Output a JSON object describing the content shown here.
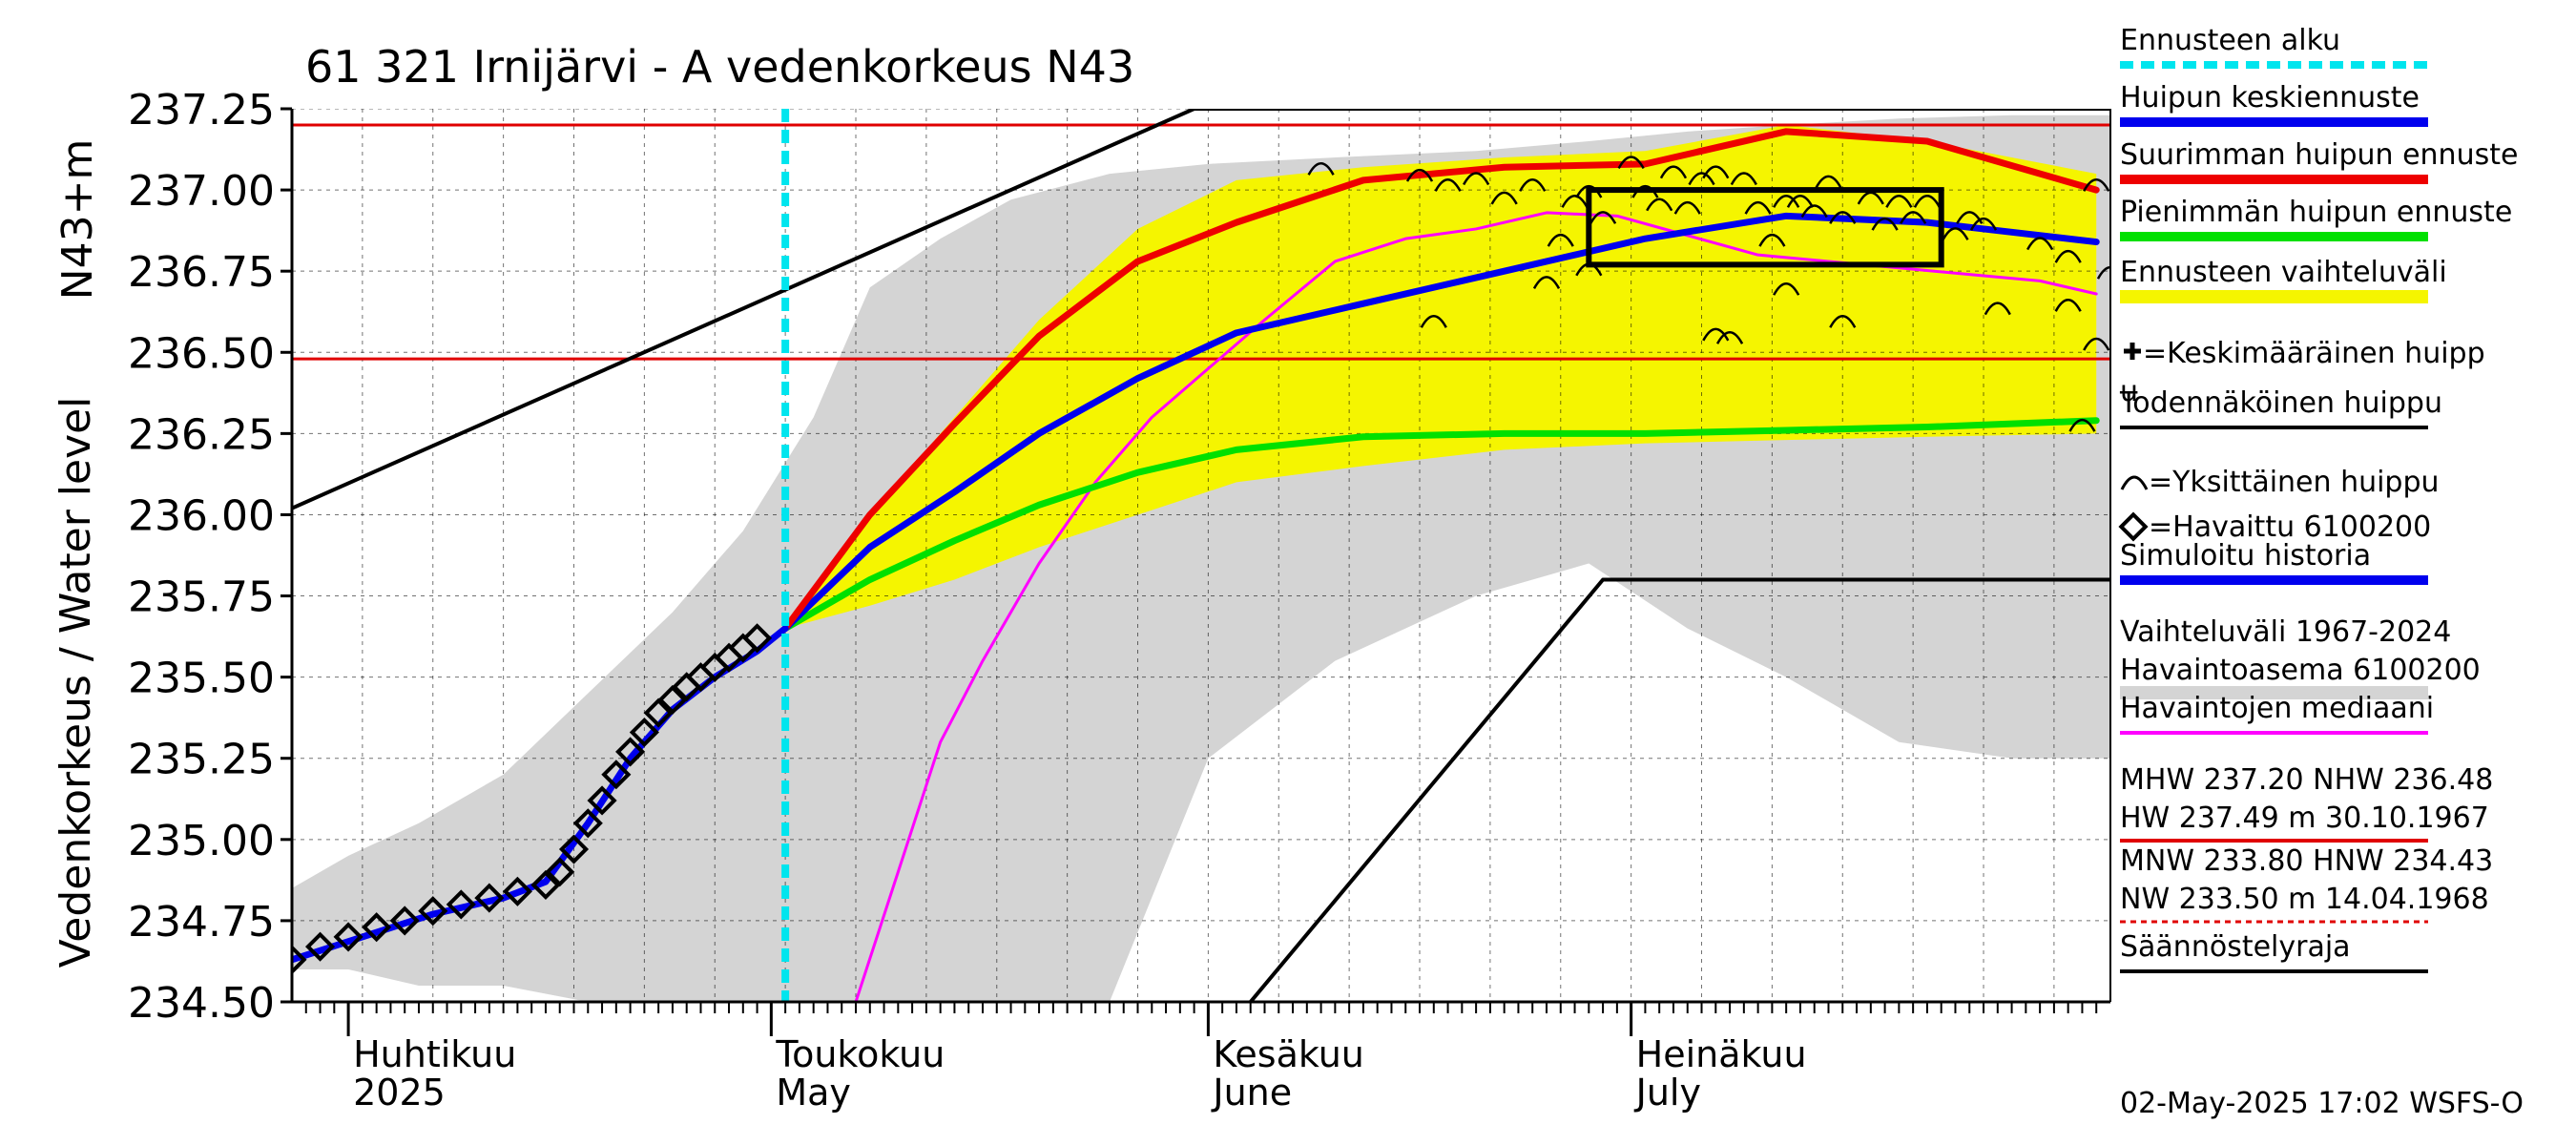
{
  "chart_data": {
    "type": "line",
    "title": "61 321 Irnijärvi - A vedenkorkeus N43",
    "ylabel_outer": "Vedenkorkeus / Water level",
    "ylabel_inner": "N43+m",
    "ylim": [
      234.5,
      237.25
    ],
    "yticks": [
      {
        "value": 234.5,
        "label": "234.50"
      },
      {
        "value": 234.75,
        "label": "234.75"
      },
      {
        "value": 235.0,
        "label": "235.00"
      },
      {
        "value": 235.25,
        "label": "235.25"
      },
      {
        "value": 235.5,
        "label": "235.50"
      },
      {
        "value": 235.75,
        "label": "235.75"
      },
      {
        "value": 236.0,
        "label": "236.00"
      },
      {
        "value": 236.25,
        "label": "236.25"
      },
      {
        "value": 236.5,
        "label": "236.50"
      },
      {
        "value": 236.75,
        "label": "236.75"
      },
      {
        "value": 237.0,
        "label": "237.00"
      },
      {
        "value": 237.25,
        "label": "237.25"
      }
    ],
    "xlim": [
      "2025-03-28",
      "2025-08-04"
    ],
    "month_ticks": [
      {
        "date": "2025-04-01",
        "label1": "Huhtikuu",
        "label2": "2025"
      },
      {
        "date": "2025-05-01",
        "label1": "Toukokuu",
        "label2": "May"
      },
      {
        "date": "2025-06-01",
        "label1": "Kesäkuu",
        "label2": "June"
      },
      {
        "date": "2025-07-01",
        "label1": "Heinäkuu",
        "label2": "July"
      }
    ],
    "forecast_start": "2025-05-02",
    "hlines": [
      {
        "name": "MHW",
        "value": 237.2,
        "color": "#e00000"
      },
      {
        "name": "NHW",
        "value": 236.48,
        "color": "#e00000"
      }
    ],
    "series": [
      {
        "name": "Vaihteluväli 1967-2024 Havaintoasema 6100200",
        "kind": "band",
        "color": "#d4d4d4",
        "x": [
          "2025-03-28",
          "2025-04-01",
          "2025-04-06",
          "2025-04-12",
          "2025-04-18",
          "2025-04-24",
          "2025-04-29",
          "2025-05-04",
          "2025-05-08",
          "2025-05-13",
          "2025-05-18",
          "2025-05-25",
          "2025-06-01",
          "2025-06-10",
          "2025-06-20",
          "2025-06-28",
          "2025-07-05",
          "2025-07-12",
          "2025-07-20",
          "2025-07-28",
          "2025-08-04"
        ],
        "upper": [
          234.85,
          234.95,
          235.05,
          235.2,
          235.45,
          235.7,
          235.95,
          236.3,
          236.7,
          236.85,
          236.97,
          237.05,
          237.08,
          237.1,
          237.12,
          237.15,
          237.18,
          237.2,
          237.22,
          237.23,
          237.23
        ],
        "lower": [
          234.6,
          234.6,
          234.55,
          234.55,
          234.5,
          234.5,
          234.5,
          234.5,
          234.5,
          234.5,
          234.5,
          234.5,
          235.25,
          235.55,
          235.75,
          235.85,
          235.65,
          235.5,
          235.3,
          235.25,
          235.25
        ]
      },
      {
        "name": "Ennusteen vaihteluväli",
        "kind": "band",
        "color": "#f5f500",
        "x": [
          "2025-05-02",
          "2025-05-08",
          "2025-05-14",
          "2025-05-20",
          "2025-05-27",
          "2025-06-03",
          "2025-06-12",
          "2025-06-22",
          "2025-07-02",
          "2025-07-12",
          "2025-07-22",
          "2025-08-03"
        ],
        "upper": [
          235.65,
          236.0,
          236.3,
          236.6,
          236.88,
          237.03,
          237.07,
          237.1,
          237.12,
          237.2,
          237.15,
          237.05
        ],
        "lower": [
          235.65,
          235.72,
          235.8,
          235.9,
          236.0,
          236.1,
          236.15,
          236.2,
          236.22,
          236.23,
          236.24,
          236.25
        ]
      },
      {
        "name": "Havaintojen mediaani",
        "kind": "line",
        "color": "#ff00ff",
        "width": 3,
        "x": [
          "2025-05-07",
          "2025-05-10",
          "2025-05-13",
          "2025-05-16",
          "2025-05-18",
          "2025-05-20",
          "2025-05-24",
          "2025-05-28",
          "2025-06-01",
          "2025-06-05",
          "2025-06-10",
          "2025-06-15",
          "2025-06-20",
          "2025-06-25",
          "2025-06-30",
          "2025-07-05",
          "2025-07-10",
          "2025-07-15",
          "2025-07-20",
          "2025-07-25",
          "2025-07-30",
          "2025-08-03"
        ],
        "y": [
          234.5,
          234.9,
          235.3,
          235.55,
          235.7,
          235.85,
          236.1,
          236.3,
          236.45,
          236.6,
          236.78,
          236.85,
          236.88,
          236.93,
          236.92,
          236.86,
          236.8,
          236.78,
          236.76,
          236.74,
          236.72,
          236.68
        ]
      },
      {
        "name": "Pienimmän huipun ennuste",
        "kind": "line",
        "color": "#00e000",
        "width": 7,
        "x": [
          "2025-05-02",
          "2025-05-08",
          "2025-05-14",
          "2025-05-20",
          "2025-05-27",
          "2025-06-03",
          "2025-06-12",
          "2025-06-22",
          "2025-07-02",
          "2025-07-12",
          "2025-07-22",
          "2025-08-03"
        ],
        "y": [
          235.65,
          235.8,
          235.92,
          236.03,
          236.13,
          236.2,
          236.24,
          236.25,
          236.25,
          236.26,
          236.27,
          236.29
        ]
      },
      {
        "name": "Huipun keskiennuste",
        "kind": "line",
        "color": "#0000ee",
        "width": 7,
        "x": [
          "2025-05-02",
          "2025-05-08",
          "2025-05-14",
          "2025-05-20",
          "2025-05-27",
          "2025-06-03",
          "2025-06-12",
          "2025-06-22",
          "2025-07-02",
          "2025-07-12",
          "2025-07-22",
          "2025-08-03"
        ],
        "y": [
          235.65,
          235.9,
          236.07,
          236.25,
          236.42,
          236.56,
          236.65,
          236.75,
          236.85,
          236.92,
          236.9,
          236.84
        ]
      },
      {
        "name": "Suurimman huipun ennuste",
        "kind": "line",
        "color": "#ee0000",
        "width": 7,
        "x": [
          "2025-05-02",
          "2025-05-08",
          "2025-05-14",
          "2025-05-20",
          "2025-05-27",
          "2025-06-03",
          "2025-06-12",
          "2025-06-22",
          "2025-07-02",
          "2025-07-12",
          "2025-07-22",
          "2025-08-03"
        ],
        "y": [
          235.65,
          236.0,
          236.28,
          236.55,
          236.78,
          236.9,
          237.03,
          237.07,
          237.08,
          237.18,
          237.15,
          237.0
        ]
      },
      {
        "name": "Simuloitu historia",
        "kind": "line",
        "color": "#0000ee",
        "width": 7,
        "x": [
          "2025-03-28",
          "2025-04-02",
          "2025-04-07",
          "2025-04-12",
          "2025-04-15",
          "2025-04-18",
          "2025-04-21",
          "2025-04-24",
          "2025-04-27",
          "2025-04-30",
          "2025-05-02"
        ],
        "y": [
          234.63,
          234.7,
          234.77,
          234.82,
          234.87,
          235.05,
          235.25,
          235.4,
          235.5,
          235.58,
          235.65
        ]
      },
      {
        "name": "Todennäköinen huippu",
        "kind": "line",
        "color": "#000000",
        "width": 4,
        "x": [
          "2025-03-28",
          "2025-05-31",
          "2025-08-04"
        ],
        "y": [
          236.02,
          237.25,
          237.25
        ]
      },
      {
        "name": "Säännöstelyraja",
        "kind": "line",
        "color": "#000000",
        "width": 4,
        "x": [
          "2025-06-04",
          "2025-06-29",
          "2025-08-04"
        ],
        "y": [
          234.5,
          235.8,
          235.8
        ]
      }
    ],
    "observed": {
      "name": "Havaittu 6100200",
      "x": [
        "2025-03-28",
        "2025-03-30",
        "2025-04-01",
        "2025-04-03",
        "2025-04-05",
        "2025-04-07",
        "2025-04-09",
        "2025-04-11",
        "2025-04-13",
        "2025-04-15",
        "2025-04-16",
        "2025-04-17",
        "2025-04-18",
        "2025-04-19",
        "2025-04-20",
        "2025-04-21",
        "2025-04-22",
        "2025-04-23",
        "2025-04-24",
        "2025-04-25",
        "2025-04-26",
        "2025-04-27",
        "2025-04-28",
        "2025-04-29",
        "2025-04-30"
      ],
      "y": [
        234.63,
        234.67,
        234.7,
        234.73,
        234.75,
        234.78,
        234.8,
        234.82,
        234.84,
        234.86,
        234.9,
        234.97,
        235.05,
        235.12,
        235.2,
        235.27,
        235.33,
        235.39,
        235.43,
        235.47,
        235.5,
        235.53,
        235.56,
        235.59,
        235.62
      ]
    },
    "peak_box": {
      "x0": "2025-06-28",
      "x1": "2025-07-23",
      "y0": 236.77,
      "y1": 237.0
    },
    "single_peaks": {
      "name": "Yksittäinen huippu",
      "x": [
        "2025-06-09",
        "2025-06-16",
        "2025-06-18",
        "2025-06-20",
        "2025-06-24",
        "2025-06-26",
        "2025-06-27",
        "2025-06-28",
        "2025-06-29",
        "2025-07-01",
        "2025-07-02",
        "2025-07-04",
        "2025-07-05",
        "2025-07-06",
        "2025-07-07",
        "2025-07-09",
        "2025-07-10",
        "2025-07-11",
        "2025-07-12",
        "2025-07-13",
        "2025-07-15",
        "2025-07-16",
        "2025-07-18",
        "2025-07-19",
        "2025-07-20",
        "2025-07-21",
        "2025-07-22",
        "2025-07-24",
        "2025-07-25",
        "2025-07-26",
        "2025-07-30",
        "2025-08-01",
        "2025-08-03",
        "2025-08-04",
        "2025-06-25",
        "2025-07-07",
        "2025-07-08",
        "2025-06-28",
        "2025-07-12",
        "2025-07-16",
        "2025-08-02",
        "2025-08-03",
        "2025-06-17",
        "2025-06-22",
        "2025-07-03",
        "2025-07-14",
        "2025-07-27",
        "2025-08-01"
      ],
      "y": [
        237.07,
        237.05,
        237.02,
        237.04,
        237.02,
        236.85,
        236.97,
        237.0,
        236.92,
        237.09,
        237.0,
        237.06,
        236.95,
        237.04,
        237.06,
        237.04,
        236.95,
        236.85,
        236.97,
        236.97,
        237.03,
        236.92,
        236.98,
        236.9,
        236.97,
        236.92,
        236.97,
        236.87,
        236.92,
        236.9,
        236.84,
        236.8,
        237.02,
        236.75,
        236.72,
        236.56,
        236.55,
        236.76,
        236.7,
        236.6,
        236.28,
        236.53,
        236.6,
        236.98,
        236.96,
        236.94,
        236.64,
        236.65
      ]
    },
    "legend": [
      {
        "label": "Ennusteen alku",
        "color": "#00e5ee",
        "style": "dashed"
      },
      {
        "label": "Huipun keskiennuste",
        "color": "#0000ee",
        "style": "thick"
      },
      {
        "label": "Suurimman huipun ennuste",
        "color": "#ee0000",
        "style": "thick"
      },
      {
        "label": "Pienimmän huipun ennuste",
        "color": "#00e000",
        "style": "thick"
      },
      {
        "label": "Ennusteen vaihteluväli",
        "color": "#f5f500",
        "style": "band"
      },
      {
        "label": "=Keskimääräinen huipp",
        "label2": "u",
        "color": "#000000",
        "style": "cross"
      },
      {
        "label": "Todennäköinen huippu",
        "color": "#000000",
        "style": "thin"
      },
      {
        "label": "=Yksittäinen huippu",
        "color": "#000000",
        "style": "arc"
      },
      {
        "label": "=Havaittu 6100200",
        "color": "#000000",
        "style": "diamond"
      },
      {
        "label": "Simuloitu historia",
        "color": "#0000ee",
        "style": "thick"
      },
      {
        "label": "Vaihteluväli 1967-2024",
        "label2": " Havaintoasema 6100200",
        "color": "#d4d4d4",
        "style": "band"
      },
      {
        "label": "Havaintojen mediaani",
        "color": "#ff00ff",
        "style": "thin"
      },
      {
        "label": "MHW 237.20 NHW 236.48",
        "label2": "HW 237.49 m 30.10.1967",
        "color": "#e00000",
        "style": "thin"
      },
      {
        "label": "MNW 233.80 HNW 234.43",
        "label2": "NW 233.50 m 14.04.1968",
        "color": "#e00000",
        "style": "dotted"
      },
      {
        "label": "Säännöstelyraja",
        "color": "#000000",
        "style": "thin"
      }
    ],
    "footer": "02-May-2025 17:02 WSFS-O"
  }
}
